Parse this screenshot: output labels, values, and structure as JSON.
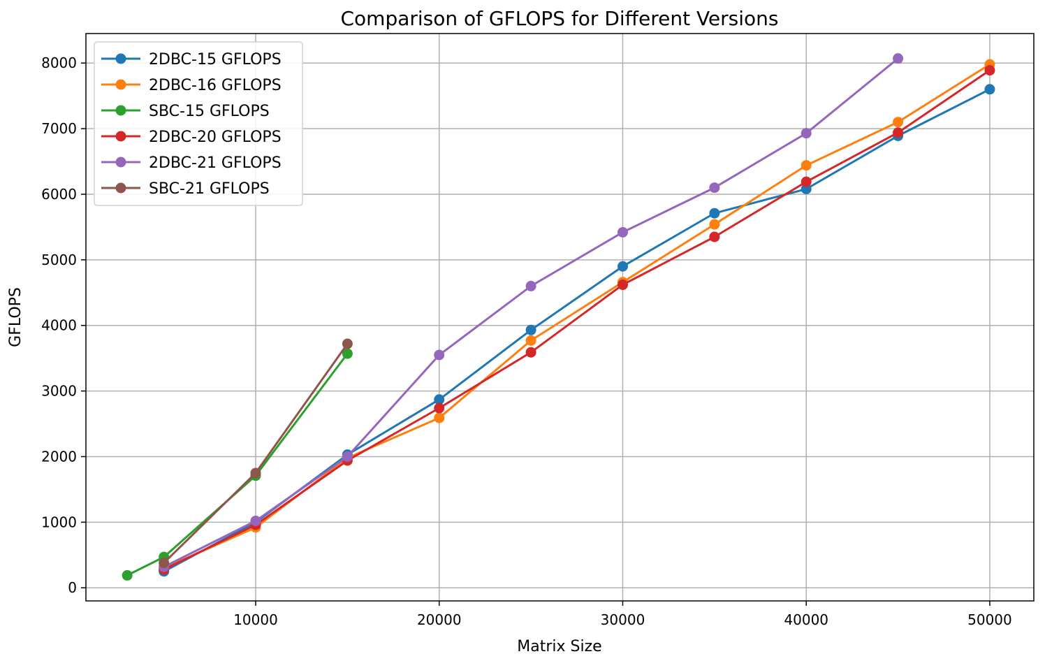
{
  "chart_data": {
    "type": "line",
    "title": "Comparison of GFLOPS for Different Versions",
    "xlabel": "Matrix Size",
    "ylabel": "GFLOPS",
    "xlim": [
      750,
      52400
    ],
    "ylim": [
      -200,
      8450
    ],
    "xticks": [
      10000,
      20000,
      30000,
      40000,
      50000
    ],
    "yticks": [
      0,
      1000,
      2000,
      3000,
      4000,
      5000,
      6000,
      7000,
      8000
    ],
    "grid": true,
    "legend_position": "top-left",
    "series": [
      {
        "name": "2DBC-15 GFLOPS",
        "color": "#1f77b4",
        "x": [
          5000,
          10000,
          15000,
          20000,
          25000,
          30000,
          35000,
          40000,
          45000,
          50000
        ],
        "y": [
          250,
          1000,
          2030,
          2870,
          3930,
          4900,
          5710,
          6080,
          6890,
          7600
        ]
      },
      {
        "name": "2DBC-16 GFLOPS",
        "color": "#ff7f0e",
        "x": [
          5000,
          10000,
          15000,
          20000,
          25000,
          30000,
          35000,
          40000,
          45000,
          50000
        ],
        "y": [
          300,
          920,
          1980,
          2590,
          3770,
          4660,
          5540,
          6440,
          7100,
          7980
        ]
      },
      {
        "name": "SBC-15 GFLOPS",
        "color": "#2ca02c",
        "x": [
          3000,
          5000,
          10000,
          15000
        ],
        "y": [
          190,
          470,
          1710,
          3570
        ]
      },
      {
        "name": "2DBC-20 GFLOPS",
        "color": "#d62728",
        "x": [
          5000,
          10000,
          15000,
          20000,
          25000,
          30000,
          35000,
          40000,
          45000,
          50000
        ],
        "y": [
          280,
          960,
          1940,
          2740,
          3590,
          4620,
          5350,
          6190,
          6940,
          7890
        ]
      },
      {
        "name": "2DBC-21 GFLOPS",
        "color": "#9467bd",
        "x": [
          5000,
          10000,
          15000,
          20000,
          25000,
          30000,
          35000,
          40000,
          45000
        ],
        "y": [
          320,
          1020,
          2000,
          3550,
          4600,
          5420,
          6100,
          6930,
          8070
        ]
      },
      {
        "name": "SBC-21 GFLOPS",
        "color": "#8c564b",
        "x": [
          5000,
          10000,
          15000
        ],
        "y": [
          380,
          1750,
          3720
        ]
      }
    ]
  }
}
